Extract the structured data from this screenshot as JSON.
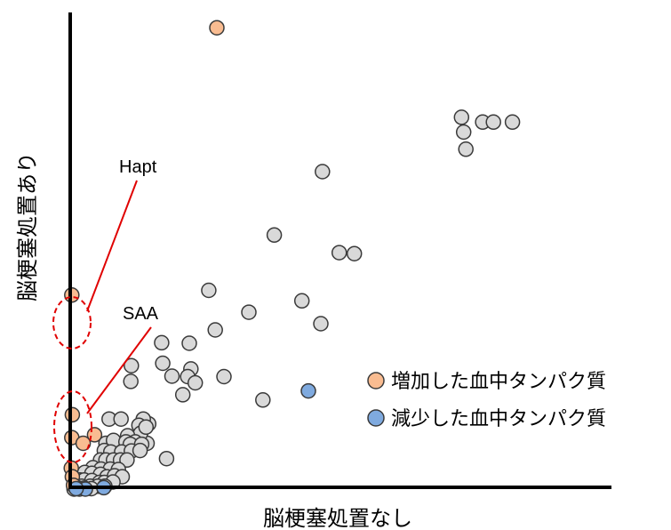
{
  "chart_data": {
    "type": "scatter",
    "title": "",
    "xlabel": "脳梗塞処置なし",
    "ylabel": "脳梗塞処置あり",
    "xlim": [
      0,
      100
    ],
    "ylim": [
      0,
      100
    ],
    "grid": false,
    "legend_placement": "right",
    "legend": [
      {
        "label": "増加した血中タンパク質",
        "color": "#f9bc91"
      },
      {
        "label": "減少した血中タンパク質",
        "color": "#7faadf"
      }
    ],
    "annotations": [
      {
        "text": "Hapt",
        "points_to": "Hapt"
      },
      {
        "text": "SAA",
        "points_to": "SAA"
      }
    ],
    "series": [
      {
        "name": "",
        "color": "#d9d9d9",
        "points": [
          [
            76.2,
            77.0
          ],
          [
            78.2,
            77.0
          ],
          [
            81.7,
            77.0
          ],
          [
            72.3,
            78.0
          ],
          [
            72.7,
            74.9
          ],
          [
            73.1,
            71.3
          ],
          [
            46.6,
            66.6
          ],
          [
            37.7,
            53.3
          ],
          [
            49.7,
            49.6
          ],
          [
            52.5,
            49.4
          ],
          [
            25.6,
            41.7
          ],
          [
            42.8,
            39.5
          ],
          [
            33.0,
            37.1
          ],
          [
            46.3,
            34.7
          ],
          [
            26.8,
            33.4
          ],
          [
            22.0,
            30.6
          ],
          [
            16.9,
            30.7
          ],
          [
            11.3,
            25.9
          ],
          [
            17.1,
            26.4
          ],
          [
            22.3,
            25.2
          ],
          [
            11.2,
            22.6
          ],
          [
            18.8,
            23.7
          ],
          [
            21.7,
            23.6
          ],
          [
            23.1,
            22.3
          ],
          [
            28.4,
            23.6
          ],
          [
            20.8,
            19.8
          ],
          [
            35.6,
            18.7
          ],
          [
            14.5,
            13.7
          ],
          [
            13.5,
            14.7
          ],
          [
            14.2,
            9.6
          ],
          [
            7.2,
            14.7
          ],
          [
            9.4,
            14.7
          ],
          [
            12.7,
            13.4
          ],
          [
            13.0,
            11.7
          ],
          [
            10.6,
            11.2
          ],
          [
            12.0,
            9.9
          ],
          [
            6.6,
            9.6
          ],
          [
            8.0,
            10.2
          ],
          [
            10.3,
            9.9
          ],
          [
            11.1,
            9.4
          ],
          [
            13.2,
            9.4
          ],
          [
            14.0,
            13.0
          ],
          [
            6.3,
            8.1
          ],
          [
            7.5,
            7.8
          ],
          [
            9.5,
            7.8
          ],
          [
            11.3,
            8.0
          ],
          [
            12.9,
            8.1
          ],
          [
            17.8,
            6.4
          ],
          [
            5.6,
            6.1
          ],
          [
            6.6,
            6.1
          ],
          [
            8.0,
            6.1
          ],
          [
            9.3,
            6.1
          ],
          [
            10.5,
            6.1
          ],
          [
            4.2,
            4.5
          ],
          [
            5.7,
            4.2
          ],
          [
            7.4,
            4.2
          ],
          [
            8.9,
            4.1
          ],
          [
            2.7,
            3.5
          ],
          [
            4.0,
            3.3
          ],
          [
            5.6,
            3.1
          ],
          [
            6.8,
            2.6
          ],
          [
            8.2,
            2.8
          ],
          [
            9.6,
            2.6
          ],
          [
            1.8,
            1.9
          ],
          [
            2.6,
            1.9
          ],
          [
            4.0,
            1.8
          ],
          [
            5.4,
            1.4
          ],
          [
            6.3,
            1.4
          ],
          [
            7.9,
            1.5
          ],
          [
            0.8,
            0.8
          ],
          [
            2.1,
            0.6
          ],
          [
            3.7,
            0.6
          ],
          [
            5.1,
            0.6
          ],
          [
            6.4,
            0.6
          ],
          [
            1.3,
            0.3
          ],
          [
            2.6,
            0.2
          ],
          [
            3.9,
            0.1
          ],
          [
            0.7,
            0.0
          ]
        ]
      },
      {
        "name": "増加した血中タンパク質",
        "color": "#f9bc91",
        "points": [
          [
            27.1,
            96.8
          ],
          [
            0.3,
            40.7
          ],
          [
            0.4,
            15.6
          ],
          [
            0.3,
            10.8
          ],
          [
            2.4,
            9.6
          ],
          [
            4.5,
            11.4
          ],
          [
            0.2,
            4.4
          ],
          [
            0.4,
            2.6
          ],
          [
            0.6,
            0.8
          ]
        ]
      },
      {
        "name": "減少した血中タンパク質",
        "color": "#7faadf",
        "points": [
          [
            44.0,
            20.6
          ],
          [
            6.2,
            0.3
          ],
          [
            1.7,
            0.0
          ],
          [
            2.8,
            0.0
          ],
          [
            1.1,
            0.1
          ]
        ]
      }
    ],
    "point_labels": [
      {
        "text": "Hapt",
        "series": 1,
        "point": 1
      },
      {
        "text": "SAA",
        "series": 1,
        "point": 2
      }
    ]
  }
}
